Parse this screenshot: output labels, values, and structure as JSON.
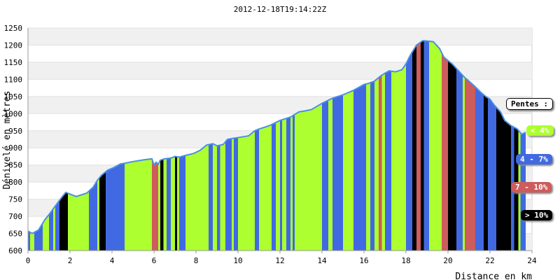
{
  "chart_data": {
    "type": "area",
    "title": "2012-12-18T19:14:22Z",
    "xlabel": "Distance en km",
    "ylabel": "Dénivelé en mètres",
    "xlim": [
      0,
      24
    ],
    "ylim": [
      600,
      1250
    ],
    "x_ticks": [
      "0",
      "2",
      "4",
      "6",
      "8",
      "10",
      "12",
      "14",
      "16",
      "18",
      "20",
      "22",
      "24"
    ],
    "y_ticks": [
      "600",
      "650",
      "700",
      "750",
      "800",
      "850",
      "900",
      "950",
      "1000",
      "1050",
      "1100",
      "1150",
      "1200",
      "1250"
    ],
    "grid": "horizontal bands",
    "legend": {
      "title": "Pentes :",
      "placement": "right",
      "items": [
        {
          "label": "< 4%",
          "color": "#adff2f",
          "text_color": "#ffffff"
        },
        {
          "label": "4 - 7%",
          "color": "#4169e1",
          "text_color": "#ffffff"
        },
        {
          "label": "7 - 10%",
          "color": "#cd5c5c",
          "text_color": "#ffffff"
        },
        {
          "label": "> 10%",
          "color": "#000000",
          "text_color": "#ffffff"
        }
      ]
    },
    "profile": {
      "x": [
        0,
        0.2,
        0.5,
        0.8,
        1.0,
        1.3,
        1.6,
        1.8,
        2.0,
        2.3,
        2.5,
        2.8,
        3.1,
        3.3,
        3.5,
        3.8,
        4.1,
        4.4,
        4.6,
        5.0,
        5.5,
        5.9,
        6.0,
        6.1,
        6.2,
        6.3,
        6.5,
        6.8,
        7.0,
        7.2,
        7.5,
        7.9,
        8.2,
        8.5,
        8.8,
        9.0,
        9.3,
        9.5,
        9.8,
        10.0,
        10.5,
        10.8,
        11.0,
        11.5,
        12.0,
        12.5,
        12.9,
        13.2,
        13.5,
        14.0,
        14.5,
        15.0,
        15.5,
        16.0,
        16.2,
        16.5,
        16.8,
        17.0,
        17.2,
        17.5,
        17.8,
        18.0,
        18.2,
        18.5,
        18.8,
        19.0,
        19.3,
        19.6,
        19.8,
        20.0,
        20.2,
        20.5,
        20.8,
        21.0,
        21.3,
        21.6,
        21.8,
        22.0,
        22.2,
        22.5,
        22.7,
        23.0,
        23.3,
        23.5,
        23.7
      ],
      "y": [
        657,
        650,
        660,
        690,
        705,
        730,
        755,
        770,
        765,
        758,
        762,
        768,
        785,
        805,
        820,
        835,
        843,
        853,
        855,
        860,
        865,
        868,
        850,
        858,
        852,
        864,
        868,
        870,
        875,
        873,
        878,
        884,
        893,
        908,
        912,
        906,
        910,
        925,
        928,
        930,
        935,
        950,
        955,
        965,
        980,
        990,
        1005,
        1008,
        1012,
        1030,
        1045,
        1055,
        1068,
        1085,
        1088,
        1095,
        1110,
        1118,
        1125,
        1122,
        1128,
        1145,
        1170,
        1200,
        1213,
        1212,
        1210,
        1190,
        1165,
        1155,
        1145,
        1125,
        1105,
        1095,
        1078,
        1060,
        1050,
        1042,
        1025,
        1005,
        980,
        965,
        955,
        940,
        945
      ]
    },
    "slope_bands": [
      {
        "x0": 0.0,
        "x1": 0.1,
        "cls": "4 - 7%"
      },
      {
        "x0": 0.3,
        "x1": 0.7,
        "cls": "4 - 7%"
      },
      {
        "x0": 1.0,
        "x1": 1.2,
        "cls": "4 - 7%"
      },
      {
        "x0": 1.3,
        "x1": 1.5,
        "cls": "4 - 7%"
      },
      {
        "x0": 1.5,
        "x1": 1.9,
        "cls": "> 10%"
      },
      {
        "x0": 2.9,
        "x1": 3.3,
        "cls": "4 - 7%"
      },
      {
        "x0": 3.4,
        "x1": 3.7,
        "cls": "> 10%"
      },
      {
        "x0": 3.7,
        "x1": 4.6,
        "cls": "4 - 7%"
      },
      {
        "x0": 5.9,
        "x1": 6.2,
        "cls": "7 - 10%"
      },
      {
        "x0": 6.3,
        "x1": 6.45,
        "cls": "> 10%"
      },
      {
        "x0": 6.6,
        "x1": 6.8,
        "cls": "4 - 7%"
      },
      {
        "x0": 7.0,
        "x1": 7.1,
        "cls": "> 10%"
      },
      {
        "x0": 7.2,
        "x1": 7.5,
        "cls": "4 - 7%"
      },
      {
        "x0": 8.6,
        "x1": 8.8,
        "cls": "4 - 7%"
      },
      {
        "x0": 9.0,
        "x1": 9.15,
        "cls": "4 - 7%"
      },
      {
        "x0": 9.4,
        "x1": 9.7,
        "cls": "4 - 7%"
      },
      {
        "x0": 9.8,
        "x1": 10.0,
        "cls": "4 - 7%"
      },
      {
        "x0": 10.8,
        "x1": 11.0,
        "cls": "4 - 7%"
      },
      {
        "x0": 11.6,
        "x1": 11.8,
        "cls": "4 - 7%"
      },
      {
        "x0": 12.0,
        "x1": 12.1,
        "cls": "4 - 7%"
      },
      {
        "x0": 12.3,
        "x1": 12.5,
        "cls": "4 - 7%"
      },
      {
        "x0": 12.6,
        "x1": 12.7,
        "cls": "4 - 7%"
      },
      {
        "x0": 14.0,
        "x1": 14.3,
        "cls": "4 - 7%"
      },
      {
        "x0": 14.5,
        "x1": 15.0,
        "cls": "4 - 7%"
      },
      {
        "x0": 15.5,
        "x1": 16.1,
        "cls": "4 - 7%"
      },
      {
        "x0": 16.3,
        "x1": 16.5,
        "cls": "4 - 7%"
      },
      {
        "x0": 16.7,
        "x1": 16.85,
        "cls": "7 - 10%"
      },
      {
        "x0": 17.0,
        "x1": 17.3,
        "cls": "4 - 7%"
      },
      {
        "x0": 18.0,
        "x1": 18.3,
        "cls": "4 - 7%"
      },
      {
        "x0": 18.3,
        "x1": 18.5,
        "cls": "> 10%"
      },
      {
        "x0": 18.5,
        "x1": 18.7,
        "cls": "7 - 10%"
      },
      {
        "x0": 18.7,
        "x1": 18.85,
        "cls": "> 10%"
      },
      {
        "x0": 18.85,
        "x1": 19.1,
        "cls": "4 - 7%"
      },
      {
        "x0": 19.7,
        "x1": 20.0,
        "cls": "7 - 10%"
      },
      {
        "x0": 20.0,
        "x1": 20.4,
        "cls": "> 10%"
      },
      {
        "x0": 20.4,
        "x1": 20.7,
        "cls": "4 - 7%"
      },
      {
        "x0": 20.8,
        "x1": 21.3,
        "cls": "7 - 10%"
      },
      {
        "x0": 21.3,
        "x1": 21.7,
        "cls": "4 - 7%"
      },
      {
        "x0": 21.7,
        "x1": 21.9,
        "cls": "> 10%"
      },
      {
        "x0": 21.9,
        "x1": 22.3,
        "cls": "4 - 7%"
      },
      {
        "x0": 22.3,
        "x1": 23.0,
        "cls": "> 10%"
      },
      {
        "x0": 23.0,
        "x1": 23.15,
        "cls": "4 - 7%"
      },
      {
        "x0": 23.15,
        "x1": 23.35,
        "cls": "> 10%"
      },
      {
        "x0": 23.45,
        "x1": 23.7,
        "cls": "4 - 7%"
      }
    ]
  }
}
